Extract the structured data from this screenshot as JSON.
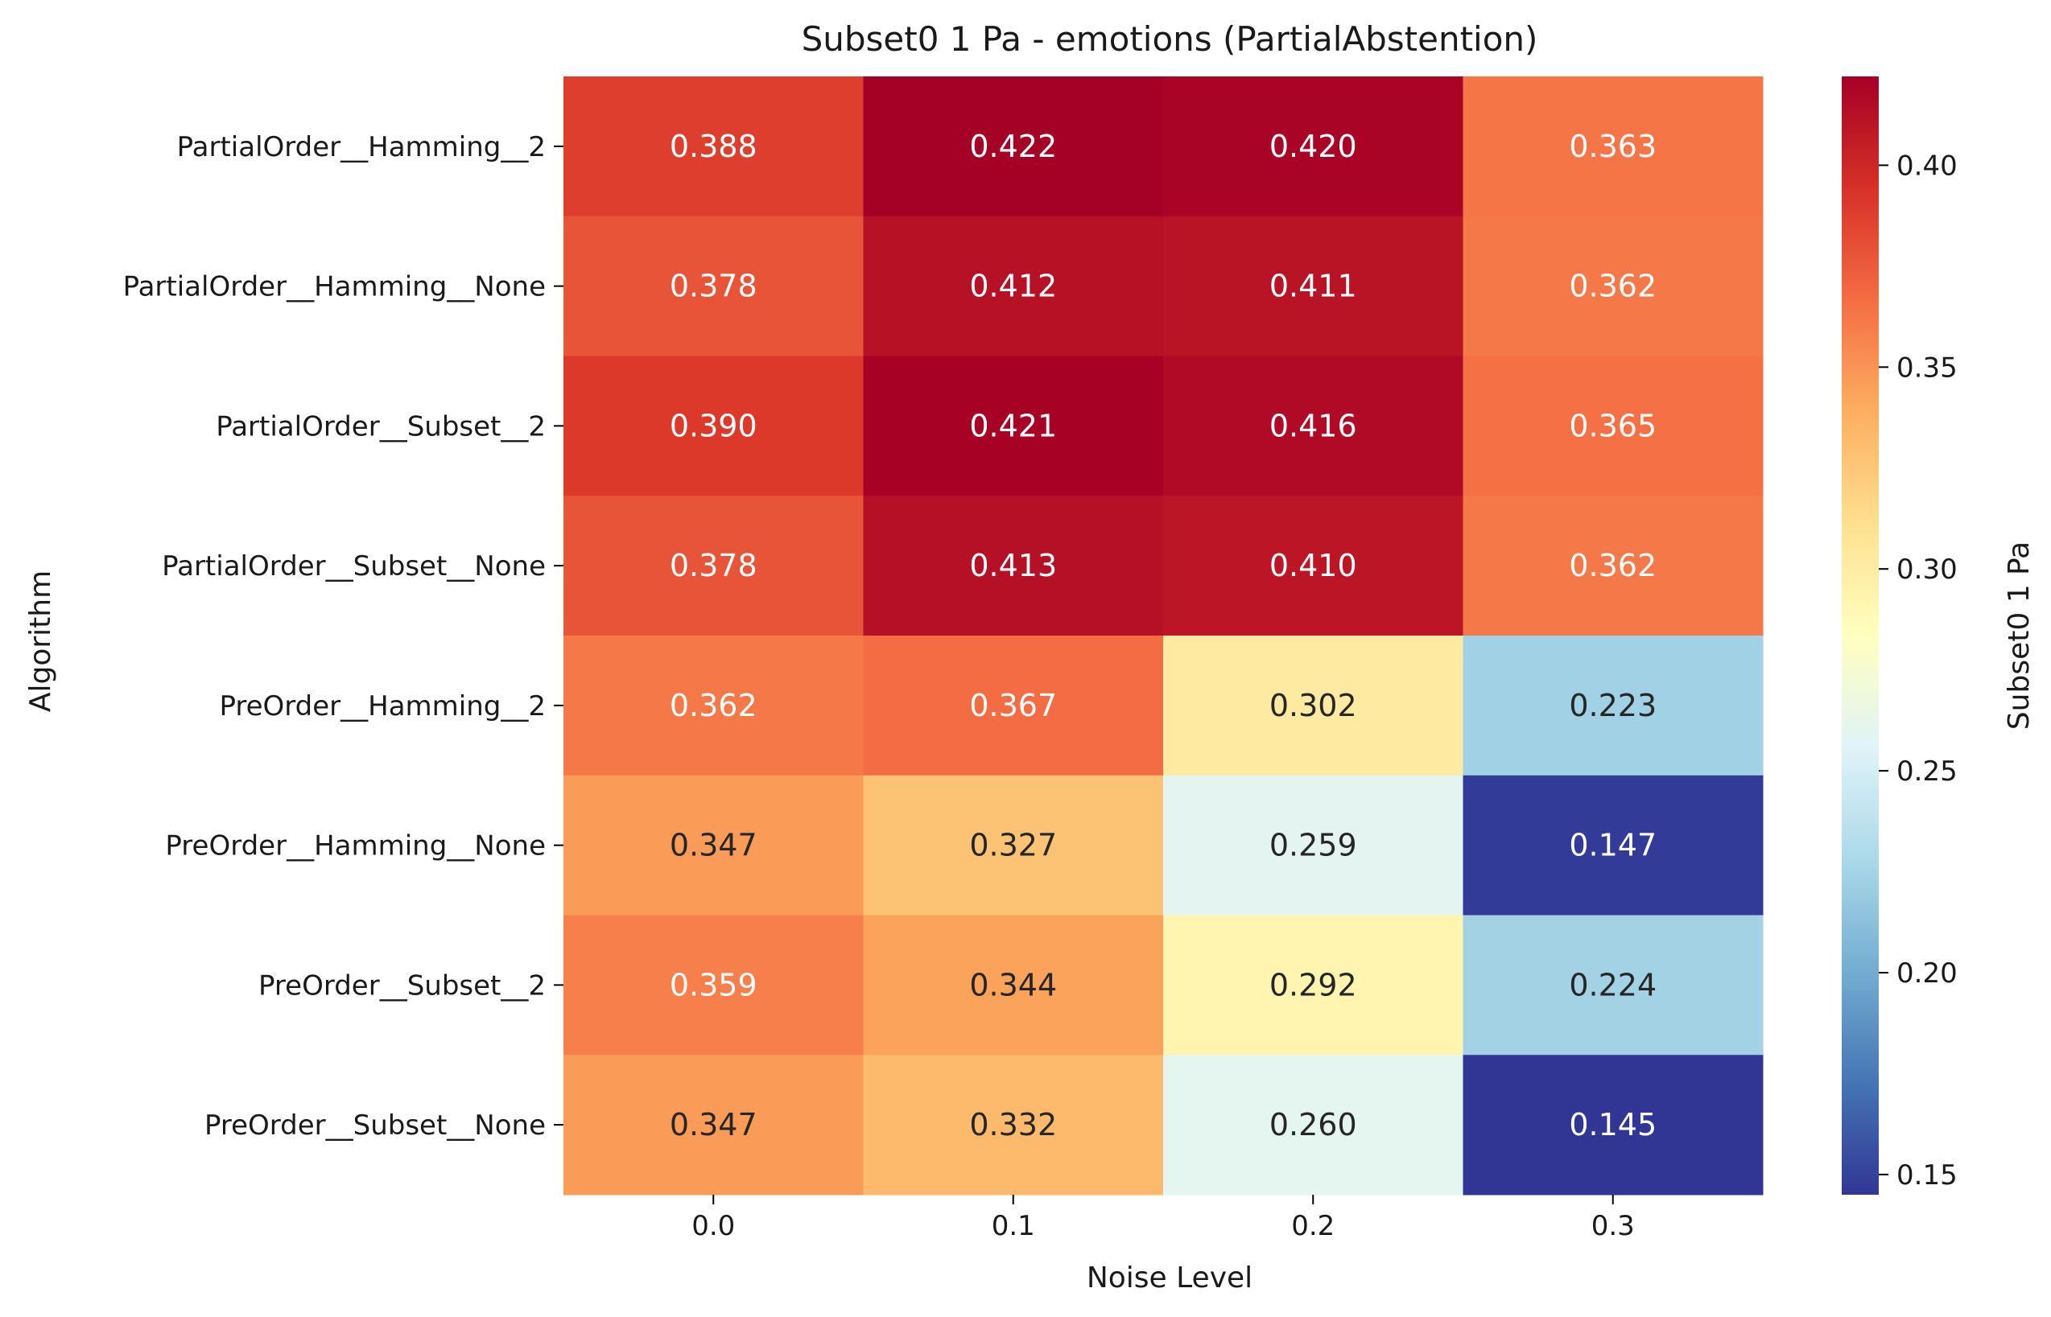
{
  "chart_data": {
    "type": "heatmap",
    "title": "Subset0 1 Pa - emotions (PartialAbstention)",
    "xlabel": "Noise Level",
    "ylabel": "Algorithm",
    "x": [
      "0.0",
      "0.1",
      "0.2",
      "0.3"
    ],
    "y": [
      "PartialOrder__Hamming__2",
      "PartialOrder__Hamming__None",
      "PartialOrder__Subset__2",
      "PartialOrder__Subset__None",
      "PreOrder__Hamming__2",
      "PreOrder__Hamming__None",
      "PreOrder__Subset__2",
      "PreOrder__Subset__None"
    ],
    "values": [
      [
        0.388,
        0.422,
        0.42,
        0.363
      ],
      [
        0.378,
        0.412,
        0.411,
        0.362
      ],
      [
        0.39,
        0.421,
        0.416,
        0.365
      ],
      [
        0.378,
        0.413,
        0.41,
        0.362
      ],
      [
        0.362,
        0.367,
        0.302,
        0.223
      ],
      [
        0.347,
        0.327,
        0.259,
        0.147
      ],
      [
        0.359,
        0.344,
        0.292,
        0.224
      ],
      [
        0.347,
        0.332,
        0.26,
        0.145
      ]
    ],
    "value_format": "3 decimals",
    "colorbar": {
      "label": "Subset0 1 Pa",
      "range": [
        0.145,
        0.422
      ],
      "ticks": [
        "0.15",
        "0.20",
        "0.25",
        "0.30",
        "0.35",
        "0.40"
      ],
      "colormap": "RdYlBu_r"
    }
  }
}
